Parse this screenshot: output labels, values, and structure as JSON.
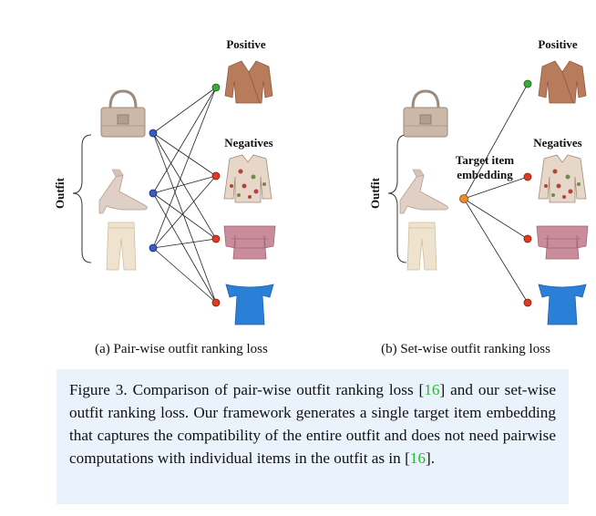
{
  "panel_a": {
    "positive_label": "Positive",
    "negatives_label": "Negatives",
    "outfit_label": "Outfit",
    "subcaption": "(a) Pair-wise outfit ranking loss"
  },
  "panel_b": {
    "positive_label": "Positive",
    "negatives_label": "Negatives",
    "outfit_label": "Outfit",
    "embedding_label_line1": "Target item",
    "embedding_label_line2": "embedding",
    "subcaption": "(b) Set-wise outfit ranking loss"
  },
  "caption": {
    "part1": "Figure 3.  Comparison of pair-wise outfit ranking loss [",
    "cite1": "16",
    "part2": "] and our set-wise outfit ranking loss. Our framework generates a single target item embedding that captures the compatibility of the entire outfit and does not need pairwise computations with individual items in the outfit as in [",
    "cite2": "16",
    "part3": "]."
  },
  "colors": {
    "outfit_node": "#3b5bc4",
    "positive_node": "#3aa935",
    "negative_node": "#e23a1e",
    "embedding_node": "#f08a2a",
    "caption_bg": "#eaf3fc",
    "citation": "#1fbf2a"
  }
}
